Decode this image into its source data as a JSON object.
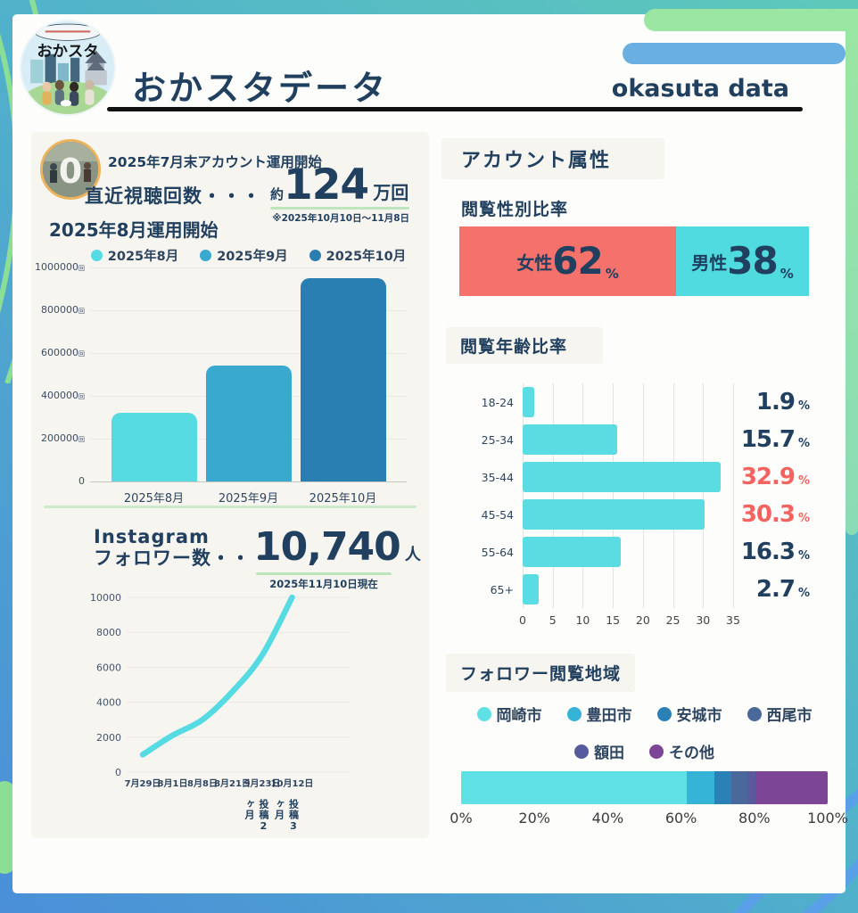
{
  "header": {
    "title": "おかスタデータ",
    "subtitle_en": "okasuta data",
    "logo_text": "おかスタ"
  },
  "colors": {
    "navy": "#21405f",
    "red": "#f4635f",
    "cyan": "#57dbe3",
    "teal": "#3aa9cf",
    "blue": "#2a7fb2",
    "panel": "#f7f5f0",
    "green_accent": "#9be6a2",
    "blue_accent": "#69afe1",
    "underline_green": "#bfe5bd"
  },
  "sections": {
    "account_attributes": "アカウント属性"
  },
  "stats": {
    "account_start": "2025年7月末アカウント運用開始",
    "views_label": "直近視聴回数・・・",
    "views_prefix": "約",
    "views_value": "124",
    "views_unit": "万回",
    "views_note": "※2025年10月10日〜11月8日",
    "instagram_label_1": "Instagram",
    "instagram_label_2": "フォロワー数・・・",
    "followers_value": "10,740",
    "followers_unit": "人",
    "followers_note": "2025年11月10日現在"
  },
  "chart_data": [
    {
      "id": "monthly_views",
      "type": "bar",
      "title": "2025年8月運用開始",
      "categories": [
        "2025年8月",
        "2025年9月",
        "2025年10月"
      ],
      "values": [
        320000,
        540000,
        950000
      ],
      "colors": [
        "#57dbe3",
        "#3aa9cf",
        "#2a7fb2"
      ],
      "legend": [
        "2025年8月",
        "2025年9月",
        "2025年10月"
      ],
      "legend_position": "top",
      "yticks": [
        0,
        200000,
        400000,
        600000,
        800000,
        1000000
      ],
      "ytick_suffix": "回",
      "ylim": [
        0,
        1000000
      ],
      "grid": true
    },
    {
      "id": "followers",
      "type": "line",
      "x": [
        "7月29日",
        "8月1日",
        "8月8日",
        "8月21日",
        "9月23日",
        "10月12日"
      ],
      "values": [
        1000,
        2100,
        3000,
        4600,
        6700,
        10000
      ],
      "yticks": [
        0,
        2000,
        4000,
        6000,
        8000,
        10000
      ],
      "ylim": [
        0,
        10000
      ],
      "color": "#57dbe3",
      "grid": true,
      "annotations": [
        {
          "x": "9月23日",
          "label": "投稿2ヶ月"
        },
        {
          "x": "10月12日",
          "label": "投稿3ヶ月"
        }
      ]
    },
    {
      "id": "gender",
      "type": "stacked-bar",
      "title": "閲覧性別比率",
      "unit": "%",
      "segments": [
        {
          "label": "女性",
          "value": 62,
          "color": "#f4716c"
        },
        {
          "label": "男性",
          "value": 38,
          "color": "#4fdbe0"
        }
      ]
    },
    {
      "id": "age",
      "type": "bar",
      "orientation": "horizontal",
      "title": "閲覧年齢比率",
      "categories": [
        "18-24",
        "25-34",
        "35-44",
        "45-54",
        "55-64",
        "65+"
      ],
      "values": [
        1.9,
        15.7,
        32.9,
        30.3,
        16.3,
        2.7
      ],
      "unit": "%",
      "bar_color": "#5bdbe2",
      "label_colors": [
        "#21405f",
        "#21405f",
        "#f4635f",
        "#f4635f",
        "#21405f",
        "#21405f"
      ],
      "xticks": [
        0,
        5,
        10,
        15,
        20,
        25,
        30,
        35
      ],
      "xlim": [
        0,
        35
      ],
      "grid": true
    },
    {
      "id": "region",
      "type": "stacked-bar",
      "title": "フォロワー閲覧地域",
      "segments": [
        {
          "label": "岡崎市",
          "value": 61.5,
          "color": "#5ee0e4"
        },
        {
          "label": "豊田市",
          "value": 7.5,
          "color": "#36b4d8"
        },
        {
          "label": "安城市",
          "value": 4.7,
          "color": "#2b80b5"
        },
        {
          "label": "西尾市",
          "value": 4.4,
          "color": "#4a6899"
        },
        {
          "label": "額田",
          "value": 2.1,
          "color": "#585a9e"
        },
        {
          "label": "その他",
          "value": 19.8,
          "color": "#7d4596"
        }
      ],
      "legend_rows": [
        [
          "岡崎市",
          "豊田市",
          "安城市",
          "西尾市"
        ],
        [
          "額田",
          "その他"
        ]
      ],
      "xticks": [
        "0%",
        "20%",
        "40%",
        "60%",
        "80%",
        "100%"
      ]
    }
  ]
}
